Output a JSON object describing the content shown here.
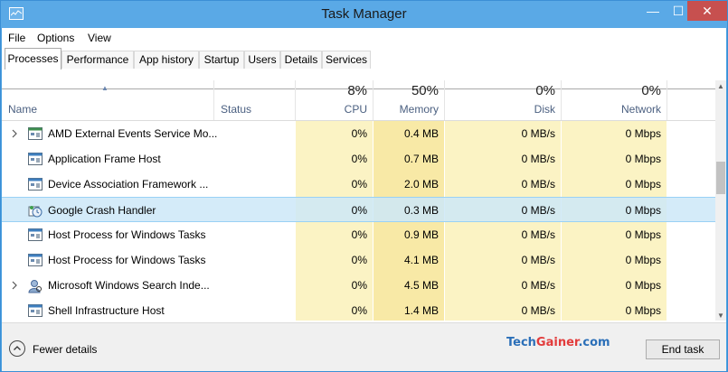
{
  "window": {
    "title": "Task Manager",
    "controls": {
      "minimize": "—",
      "maximize": "☐",
      "close": "✕"
    }
  },
  "menu": [
    "File",
    "Options",
    "View"
  ],
  "tabs": [
    "Processes",
    "Performance",
    "App history",
    "Startup",
    "Users",
    "Details",
    "Services"
  ],
  "active_tab": "Processes",
  "columns": {
    "name": {
      "label": "Name"
    },
    "status": {
      "label": "Status"
    },
    "cpu": {
      "label": "CPU",
      "percent": "8%"
    },
    "memory": {
      "label": "Memory",
      "percent": "50%"
    },
    "disk": {
      "label": "Disk",
      "percent": "0%"
    },
    "network": {
      "label": "Network",
      "percent": "0%"
    }
  },
  "processes": [
    {
      "name": "AMD External Events Service Mo...",
      "cpu": "0%",
      "memory": "0.4 MB",
      "disk": "0 MB/s",
      "network": "0 Mbps",
      "expandable": true,
      "icon": "service-icon"
    },
    {
      "name": "Application Frame Host",
      "cpu": "0%",
      "memory": "0.7 MB",
      "disk": "0 MB/s",
      "network": "0 Mbps",
      "expandable": false,
      "icon": "app-window-icon"
    },
    {
      "name": "Device Association Framework ...",
      "cpu": "0%",
      "memory": "2.0 MB",
      "disk": "0 MB/s",
      "network": "0 Mbps",
      "expandable": false,
      "icon": "app-window-icon"
    },
    {
      "name": "Google Crash Handler",
      "cpu": "0%",
      "memory": "0.3 MB",
      "disk": "0 MB/s",
      "network": "0 Mbps",
      "expandable": false,
      "icon": "crash-handler-icon",
      "selected": true
    },
    {
      "name": "Host Process for Windows Tasks",
      "cpu": "0%",
      "memory": "0.9 MB",
      "disk": "0 MB/s",
      "network": "0 Mbps",
      "expandable": false,
      "icon": "app-window-icon"
    },
    {
      "name": "Host Process for Windows Tasks",
      "cpu": "0%",
      "memory": "4.1 MB",
      "disk": "0 MB/s",
      "network": "0 Mbps",
      "expandable": false,
      "icon": "app-window-icon"
    },
    {
      "name": "Microsoft Windows Search Inde...",
      "cpu": "0%",
      "memory": "4.5 MB",
      "disk": "0 MB/s",
      "network": "0 Mbps",
      "expandable": true,
      "icon": "search-indexer-icon"
    },
    {
      "name": "Shell Infrastructure Host",
      "cpu": "0%",
      "memory": "1.4 MB",
      "disk": "0 MB/s",
      "network": "0 Mbps",
      "expandable": false,
      "icon": "app-window-icon"
    }
  ],
  "footer": {
    "fewer_details": "Fewer details",
    "end_task": "End task",
    "watermark_tech": "Tech",
    "watermark_gainer": "Gainer",
    "watermark_com": ".com"
  },
  "colors": {
    "title_bar": "#5aa9e6",
    "close_button": "#c7504f",
    "cpu_heat": "#fbf3c4",
    "memory_heat": "#f8e9a6",
    "selection": "#cde8f8"
  }
}
